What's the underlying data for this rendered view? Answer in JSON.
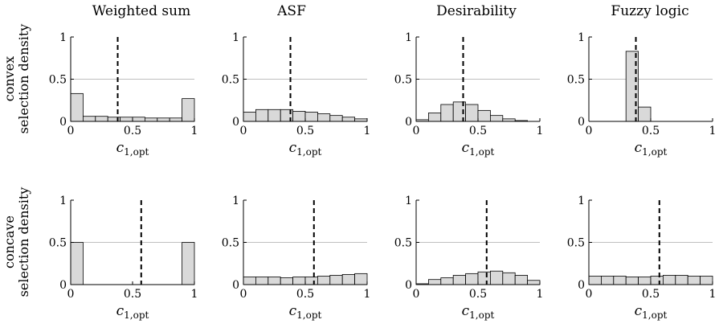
{
  "column_titles": [
    "Weighted sum",
    "ASF",
    "Desirability",
    "Fuzzy logic"
  ],
  "row_labels": [
    {
      "line1": "convex",
      "line2": "selection density"
    },
    {
      "line1": "concave",
      "line2": "selection density"
    }
  ],
  "xlabel": "c",
  "xlabel_subscript": "1,opt",
  "style": {
    "bar_fill": "#d9d9d9",
    "bar_stroke": "#000000",
    "grid_color": "#bfbfbf",
    "marker_color": "#000000"
  },
  "chart_data": [
    {
      "type": "bar",
      "row": "convex",
      "column": "Weighted sum",
      "bin_width": 0.1,
      "x": [
        0.05,
        0.15,
        0.25,
        0.35,
        0.45,
        0.55,
        0.65,
        0.75,
        0.85,
        0.95
      ],
      "values": [
        0.33,
        0.06,
        0.06,
        0.05,
        0.05,
        0.05,
        0.04,
        0.04,
        0.04,
        0.27
      ],
      "marker_x": 0.38,
      "xlim": [
        0,
        1
      ],
      "ylim": [
        0,
        1
      ],
      "xticks": [
        "0",
        "0.5",
        "1"
      ],
      "yticks": [
        "0",
        "0.5",
        "1"
      ],
      "grid": "y at 0.5"
    },
    {
      "type": "bar",
      "row": "convex",
      "column": "ASF",
      "bin_width": 0.1,
      "x": [
        0.05,
        0.15,
        0.25,
        0.35,
        0.45,
        0.55,
        0.65,
        0.75,
        0.85,
        0.95
      ],
      "values": [
        0.11,
        0.14,
        0.14,
        0.14,
        0.12,
        0.11,
        0.09,
        0.07,
        0.05,
        0.03
      ],
      "marker_x": 0.38,
      "xlim": [
        0,
        1
      ],
      "ylim": [
        0,
        1
      ],
      "xticks": [
        "0",
        "0.5",
        "1"
      ],
      "yticks": [
        "0",
        "0.5",
        "1"
      ],
      "grid": "y at 0.5"
    },
    {
      "type": "bar",
      "row": "convex",
      "column": "Desirability",
      "bin_width": 0.1,
      "x": [
        0.05,
        0.15,
        0.25,
        0.35,
        0.45,
        0.55,
        0.65,
        0.75,
        0.85,
        0.95
      ],
      "values": [
        0.02,
        0.1,
        0.2,
        0.23,
        0.2,
        0.13,
        0.07,
        0.03,
        0.01,
        0.0
      ],
      "marker_x": 0.38,
      "xlim": [
        0,
        1
      ],
      "ylim": [
        0,
        1
      ],
      "xticks": [
        "0",
        "0.5",
        "1"
      ],
      "yticks": [
        "0",
        "0.5",
        "1"
      ],
      "grid": "y at 0.5"
    },
    {
      "type": "bar",
      "row": "convex",
      "column": "Fuzzy logic",
      "bin_width": 0.1,
      "x": [
        0.05,
        0.15,
        0.25,
        0.35,
        0.45,
        0.55,
        0.65,
        0.75,
        0.85,
        0.95
      ],
      "values": [
        0,
        0,
        0,
        0.83,
        0.17,
        0,
        0,
        0,
        0,
        0
      ],
      "marker_x": 0.38,
      "xlim": [
        0,
        1
      ],
      "ylim": [
        0,
        1
      ],
      "xticks": [
        "0",
        "0.5",
        "1"
      ],
      "yticks": [
        "0",
        "0.5",
        "1"
      ],
      "grid": "y at 0.5"
    },
    {
      "type": "bar",
      "row": "concave",
      "column": "Weighted sum",
      "bin_width": 0.1,
      "x": [
        0.05,
        0.15,
        0.25,
        0.35,
        0.45,
        0.55,
        0.65,
        0.75,
        0.85,
        0.95
      ],
      "values": [
        0.5,
        0,
        0,
        0,
        0,
        0,
        0,
        0,
        0,
        0.5
      ],
      "marker_x": 0.57,
      "xlim": [
        0,
        1
      ],
      "ylim": [
        0,
        1
      ],
      "xticks": [
        "0",
        "0.5",
        "1"
      ],
      "yticks": [
        "0",
        "0.5",
        "1"
      ],
      "grid": "y at 0.5"
    },
    {
      "type": "bar",
      "row": "concave",
      "column": "ASF",
      "bin_width": 0.1,
      "x": [
        0.05,
        0.15,
        0.25,
        0.35,
        0.45,
        0.55,
        0.65,
        0.75,
        0.85,
        0.95
      ],
      "values": [
        0.09,
        0.09,
        0.09,
        0.08,
        0.09,
        0.09,
        0.1,
        0.11,
        0.12,
        0.13
      ],
      "marker_x": 0.57,
      "xlim": [
        0,
        1
      ],
      "ylim": [
        0,
        1
      ],
      "xticks": [
        "0",
        "0.5",
        "1"
      ],
      "yticks": [
        "0",
        "0.5",
        "1"
      ],
      "grid": "y at 0.5"
    },
    {
      "type": "bar",
      "row": "concave",
      "column": "Desirability",
      "bin_width": 0.1,
      "x": [
        0.05,
        0.15,
        0.25,
        0.35,
        0.45,
        0.55,
        0.65,
        0.75,
        0.85,
        0.95
      ],
      "values": [
        0.01,
        0.06,
        0.08,
        0.11,
        0.13,
        0.15,
        0.16,
        0.14,
        0.11,
        0.05
      ],
      "marker_x": 0.57,
      "xlim": [
        0,
        1
      ],
      "ylim": [
        0,
        1
      ],
      "xticks": [
        "0",
        "0.5",
        "1"
      ],
      "yticks": [
        "0",
        "0.5",
        "1"
      ],
      "grid": "y at 0.5"
    },
    {
      "type": "bar",
      "row": "concave",
      "column": "Fuzzy logic",
      "bin_width": 0.1,
      "x": [
        0.05,
        0.15,
        0.25,
        0.35,
        0.45,
        0.55,
        0.65,
        0.75,
        0.85,
        0.95
      ],
      "values": [
        0.1,
        0.1,
        0.1,
        0.09,
        0.09,
        0.1,
        0.11,
        0.11,
        0.1,
        0.1
      ],
      "marker_x": 0.57,
      "xlim": [
        0,
        1
      ],
      "ylim": [
        0,
        1
      ],
      "xticks": [
        "0",
        "0.5",
        "1"
      ],
      "yticks": [
        "0",
        "0.5",
        "1"
      ],
      "grid": "y at 0.5"
    }
  ]
}
